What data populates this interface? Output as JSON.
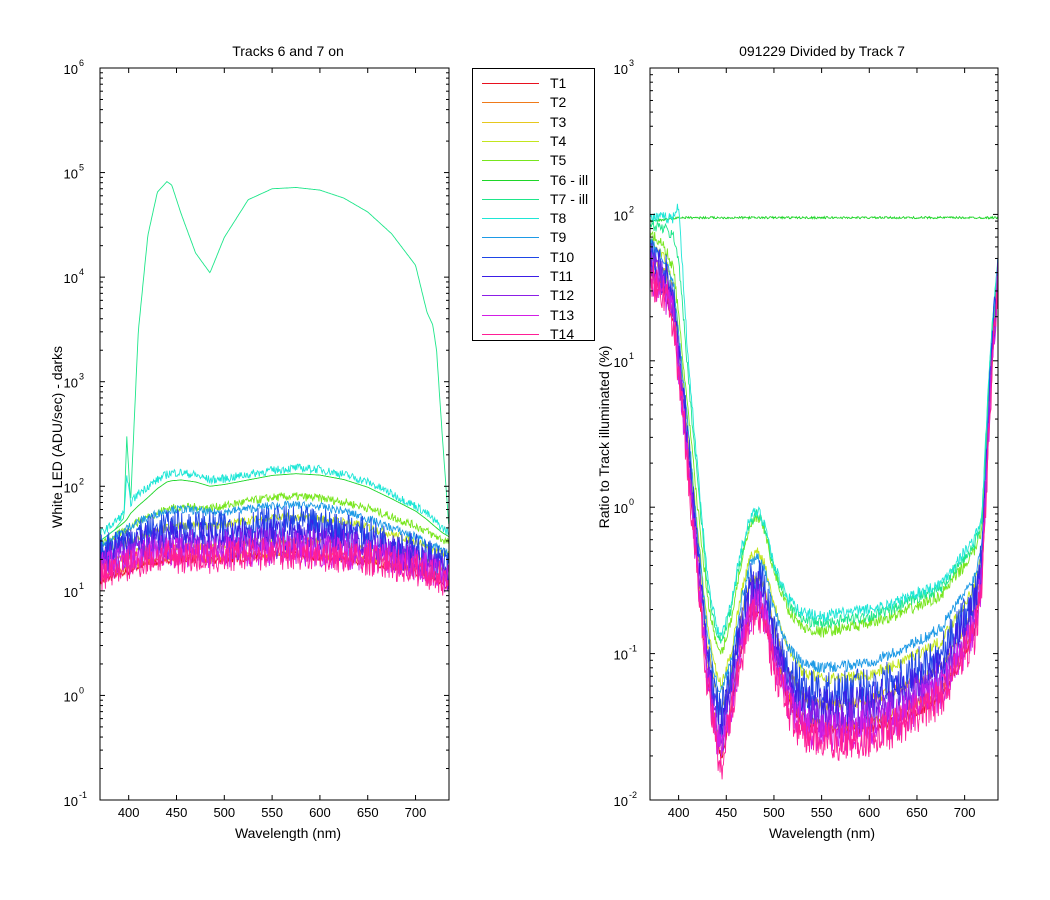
{
  "chart_data": [
    {
      "type": "line",
      "title": "Tracks 6 and 7 on",
      "xlabel": "Wavelength (nm)",
      "ylabel": "White LED  (ADU/sec) - darks",
      "xlim": [
        370,
        735
      ],
      "ylim": [
        0.1,
        1000000
      ],
      "yscale": "log",
      "xticks": [
        400,
        450,
        500,
        550,
        600,
        650,
        700
      ],
      "ytick_bases": [
        "10",
        "10",
        "10",
        "10",
        "10",
        "10",
        "10",
        "10"
      ],
      "ytick_exps": [
        "-1",
        "0",
        "1",
        "2",
        "3",
        "4",
        "5",
        "6"
      ],
      "grid": false,
      "x": [
        370,
        385,
        395,
        398,
        402,
        410,
        420,
        430,
        440,
        445,
        455,
        470,
        485,
        500,
        525,
        550,
        575,
        600,
        625,
        650,
        675,
        700,
        712,
        718,
        722,
        728,
        735
      ],
      "series": [
        {
          "name": "T1",
          "values": [
            12,
            14,
            15,
            15,
            16,
            17,
            18,
            19,
            20,
            20,
            20,
            20,
            19,
            20,
            21,
            22,
            22,
            21,
            20,
            19,
            17,
            15,
            14,
            13,
            13,
            12,
            11
          ]
        },
        {
          "name": "T2",
          "values": [
            13,
            15,
            16,
            16,
            17,
            18,
            19,
            20,
            21,
            21,
            21,
            21,
            20,
            21,
            22,
            23,
            23,
            22,
            21,
            20,
            18,
            16,
            15,
            14,
            14,
            13,
            12
          ]
        },
        {
          "name": "T3",
          "values": [
            17,
            19,
            21,
            22,
            22,
            24,
            25,
            26,
            27,
            27,
            27,
            27,
            26,
            27,
            29,
            30,
            30,
            29,
            28,
            26,
            23,
            21,
            19,
            18,
            18,
            17,
            16
          ]
        },
        {
          "name": "T4",
          "values": [
            22,
            26,
            28,
            29,
            30,
            32,
            35,
            37,
            40,
            41,
            42,
            42,
            41,
            43,
            47,
            50,
            51,
            49,
            46,
            41,
            35,
            30,
            27,
            25,
            24,
            23,
            22
          ]
        },
        {
          "name": "T5",
          "values": [
            27,
            33,
            37,
            39,
            41,
            46,
            51,
            56,
            61,
            62,
            63,
            63,
            62,
            65,
            72,
            78,
            80,
            77,
            71,
            62,
            51,
            42,
            37,
            34,
            33,
            31,
            29
          ]
        },
        {
          "name": "T6 - ill",
          "values": [
            30,
            38,
            45,
            48,
            55,
            65,
            78,
            95,
            110,
            113,
            115,
            110,
            100,
            104,
            115,
            127,
            132,
            128,
            116,
            98,
            76,
            58,
            48,
            43,
            40,
            36,
            33
          ]
        },
        {
          "name": "T7 - ill",
          "values": [
            30,
            38,
            50,
            300,
            70,
            3000,
            25000,
            65000,
            82000,
            76000,
            40000,
            17000,
            11000,
            24000,
            55000,
            70000,
            72000,
            68000,
            57000,
            42000,
            26000,
            13000,
            4600,
            3500,
            2000,
            300,
            40
          ]
        },
        {
          "name": "T8",
          "values": [
            35,
            45,
            55,
            120,
            70,
            85,
            100,
            115,
            130,
            135,
            135,
            128,
            115,
            118,
            130,
            142,
            150,
            145,
            130,
            110,
            85,
            65,
            55,
            48,
            45,
            40,
            36
          ]
        },
        {
          "name": "T9",
          "values": [
            27,
            33,
            37,
            40,
            42,
            46,
            50,
            55,
            58,
            60,
            60,
            59,
            56,
            57,
            61,
            65,
            66,
            64,
            58,
            49,
            40,
            33,
            29,
            27,
            26,
            24,
            22
          ]
        },
        {
          "name": "T10",
          "values": [
            24,
            28,
            31,
            32,
            33,
            35,
            37,
            39,
            41,
            42,
            42,
            41,
            40,
            41,
            43,
            45,
            45,
            43,
            40,
            35,
            29,
            25,
            22,
            21,
            20,
            19,
            17
          ]
        },
        {
          "name": "T11",
          "values": [
            20,
            23,
            25,
            26,
            27,
            28,
            30,
            31,
            32,
            32,
            32,
            32,
            31,
            32,
            33,
            34,
            34,
            33,
            31,
            28,
            24,
            21,
            19,
            18,
            17,
            16,
            15
          ]
        },
        {
          "name": "T12",
          "values": [
            18,
            20,
            22,
            22,
            23,
            24,
            25,
            26,
            27,
            27,
            27,
            27,
            26,
            27,
            28,
            29,
            29,
            28,
            27,
            25,
            22,
            19,
            17,
            16,
            16,
            15,
            14
          ]
        },
        {
          "name": "T13",
          "values": [
            16,
            18,
            19,
            19,
            20,
            21,
            22,
            23,
            23,
            23,
            23,
            23,
            22,
            23,
            24,
            25,
            25,
            24,
            23,
            22,
            20,
            18,
            16,
            15,
            15,
            14,
            13
          ]
        },
        {
          "name": "T14",
          "values": [
            14,
            16,
            17,
            17,
            18,
            19,
            20,
            21,
            21,
            21,
            21,
            21,
            20,
            21,
            22,
            23,
            23,
            22,
            21,
            20,
            18,
            16,
            15,
            14,
            14,
            13,
            12
          ]
        }
      ]
    },
    {
      "type": "line",
      "title": "091229 Divided by Track 7",
      "xlabel": "Wavelength (nm)",
      "ylabel": "Ratio to Track illuminated (%)",
      "xlim": [
        370,
        735
      ],
      "ylim": [
        0.01,
        1000
      ],
      "yscale": "log",
      "xticks": [
        400,
        450,
        500,
        550,
        600,
        650,
        700
      ],
      "ytick_bases": [
        "10",
        "10",
        "10",
        "10",
        "10",
        "10"
      ],
      "ytick_exps": [
        "-2",
        "-1",
        "0",
        "1",
        "2",
        "3"
      ],
      "grid": false,
      "x": [
        370,
        385,
        395,
        400,
        410,
        420,
        430,
        440,
        445,
        455,
        465,
        475,
        483,
        490,
        500,
        515,
        530,
        550,
        575,
        600,
        625,
        650,
        675,
        700,
        710,
        718,
        725,
        730,
        735
      ],
      "series": [
        {
          "name": "T1",
          "values": [
            40,
            30,
            18,
            8,
            2,
            0.35,
            0.07,
            0.025,
            0.02,
            0.04,
            0.1,
            0.18,
            0.2,
            0.17,
            0.09,
            0.05,
            0.032,
            0.03,
            0.03,
            0.031,
            0.034,
            0.04,
            0.05,
            0.1,
            0.14,
            0.3,
            3,
            12,
            35
          ]
        },
        {
          "name": "T2",
          "values": [
            42,
            32,
            20,
            9,
            2.2,
            0.4,
            0.08,
            0.03,
            0.023,
            0.045,
            0.11,
            0.2,
            0.22,
            0.19,
            0.1,
            0.055,
            0.036,
            0.033,
            0.033,
            0.035,
            0.038,
            0.045,
            0.055,
            0.11,
            0.15,
            0.32,
            3.2,
            13,
            37
          ]
        },
        {
          "name": "T3",
          "values": [
            55,
            40,
            25,
            12,
            2.8,
            0.55,
            0.12,
            0.05,
            0.04,
            0.07,
            0.17,
            0.3,
            0.33,
            0.28,
            0.15,
            0.075,
            0.05,
            0.045,
            0.045,
            0.048,
            0.055,
            0.065,
            0.08,
            0.15,
            0.2,
            0.4,
            4,
            15,
            40
          ]
        },
        {
          "name": "T4",
          "values": [
            65,
            50,
            32,
            15,
            3.5,
            0.7,
            0.16,
            0.07,
            0.06,
            0.1,
            0.25,
            0.45,
            0.5,
            0.42,
            0.22,
            0.11,
            0.075,
            0.068,
            0.068,
            0.072,
            0.082,
            0.1,
            0.12,
            0.22,
            0.28,
            0.5,
            5,
            17,
            42
          ]
        },
        {
          "name": "T5",
          "values": [
            75,
            60,
            42,
            20,
            4.5,
            1,
            0.25,
            0.11,
            0.1,
            0.17,
            0.4,
            0.75,
            0.85,
            0.7,
            0.36,
            0.2,
            0.15,
            0.14,
            0.15,
            0.16,
            0.18,
            0.21,
            0.25,
            0.4,
            0.5,
            0.7,
            6,
            20,
            45
          ]
        },
        {
          "name": "T6 - ill",
          "values": [
            90,
            92,
            94,
            95,
            95,
            95,
            95,
            95,
            95,
            95,
            95,
            95,
            95,
            95,
            95,
            95,
            95,
            95,
            95,
            95,
            95,
            95,
            95,
            95,
            95,
            95,
            95,
            95,
            95
          ]
        },
        {
          "name": "T7 - ill",
          "values": [
            85,
            80,
            70,
            50,
            8,
            1.5,
            0.3,
            0.13,
            0.12,
            0.2,
            0.45,
            0.8,
            0.9,
            0.75,
            0.38,
            0.22,
            0.17,
            0.16,
            0.17,
            0.18,
            0.2,
            0.24,
            0.28,
            0.45,
            0.55,
            0.8,
            7,
            22,
            48
          ]
        },
        {
          "name": "T8",
          "values": [
            95,
            95,
            95,
            120,
            10,
            1.8,
            0.35,
            0.15,
            0.13,
            0.22,
            0.5,
            0.85,
            0.95,
            0.8,
            0.4,
            0.24,
            0.19,
            0.18,
            0.19,
            0.2,
            0.22,
            0.26,
            0.3,
            0.5,
            0.6,
            0.85,
            7,
            22,
            48
          ]
        },
        {
          "name": "T9",
          "values": [
            65,
            50,
            32,
            15,
            3.5,
            0.65,
            0.14,
            0.062,
            0.055,
            0.09,
            0.22,
            0.4,
            0.45,
            0.38,
            0.2,
            0.11,
            0.085,
            0.08,
            0.082,
            0.088,
            0.1,
            0.12,
            0.15,
            0.26,
            0.33,
            0.55,
            5,
            17,
            42
          ]
        },
        {
          "name": "T10",
          "values": [
            55,
            42,
            27,
            12,
            2.8,
            0.5,
            0.1,
            0.045,
            0.04,
            0.07,
            0.16,
            0.3,
            0.33,
            0.28,
            0.14,
            0.075,
            0.058,
            0.055,
            0.056,
            0.06,
            0.068,
            0.08,
            0.1,
            0.18,
            0.24,
            0.45,
            4.5,
            16,
            40
          ]
        },
        {
          "name": "T11",
          "values": [
            50,
            38,
            24,
            11,
            2.5,
            0.45,
            0.09,
            0.037,
            0.032,
            0.058,
            0.14,
            0.26,
            0.29,
            0.24,
            0.12,
            0.065,
            0.045,
            0.042,
            0.043,
            0.046,
            0.052,
            0.062,
            0.078,
            0.15,
            0.2,
            0.4,
            4,
            15,
            38
          ]
        },
        {
          "name": "T12",
          "values": [
            45,
            34,
            21,
            10,
            2.2,
            0.4,
            0.08,
            0.03,
            0.026,
            0.05,
            0.12,
            0.22,
            0.25,
            0.21,
            0.1,
            0.056,
            0.038,
            0.035,
            0.035,
            0.038,
            0.043,
            0.052,
            0.065,
            0.13,
            0.17,
            0.35,
            3.5,
            14,
            36
          ]
        },
        {
          "name": "T13",
          "values": [
            40,
            30,
            19,
            9,
            2,
            0.36,
            0.07,
            0.026,
            0.022,
            0.043,
            0.1,
            0.19,
            0.22,
            0.18,
            0.09,
            0.048,
            0.032,
            0.029,
            0.029,
            0.031,
            0.035,
            0.043,
            0.055,
            0.11,
            0.15,
            0.3,
            3,
            13,
            34
          ]
        },
        {
          "name": "T14",
          "values": [
            38,
            28,
            17,
            8,
            1.8,
            0.32,
            0.062,
            0.022,
            0.018,
            0.038,
            0.09,
            0.17,
            0.2,
            0.16,
            0.08,
            0.042,
            0.028,
            0.025,
            0.025,
            0.027,
            0.031,
            0.038,
            0.05,
            0.1,
            0.13,
            0.28,
            2.8,
            12,
            32
          ]
        }
      ]
    }
  ],
  "legend": {
    "entries": [
      "T1",
      "T2",
      "T3",
      "T4",
      "T5",
      "T6 - ill",
      "T7 - ill",
      "T8",
      "T9",
      "T10",
      "T11",
      "T12",
      "T13",
      "T14"
    ],
    "colors": [
      "#e8101e",
      "#ef7a1a",
      "#e6c81e",
      "#c3e61e",
      "#78e61e",
      "#1ed628",
      "#1ee68a",
      "#1ee6d6",
      "#1e9ae6",
      "#1e46e6",
      "#3c1ee6",
      "#8c1ee6",
      "#d21ee6",
      "#ff1e96"
    ]
  }
}
